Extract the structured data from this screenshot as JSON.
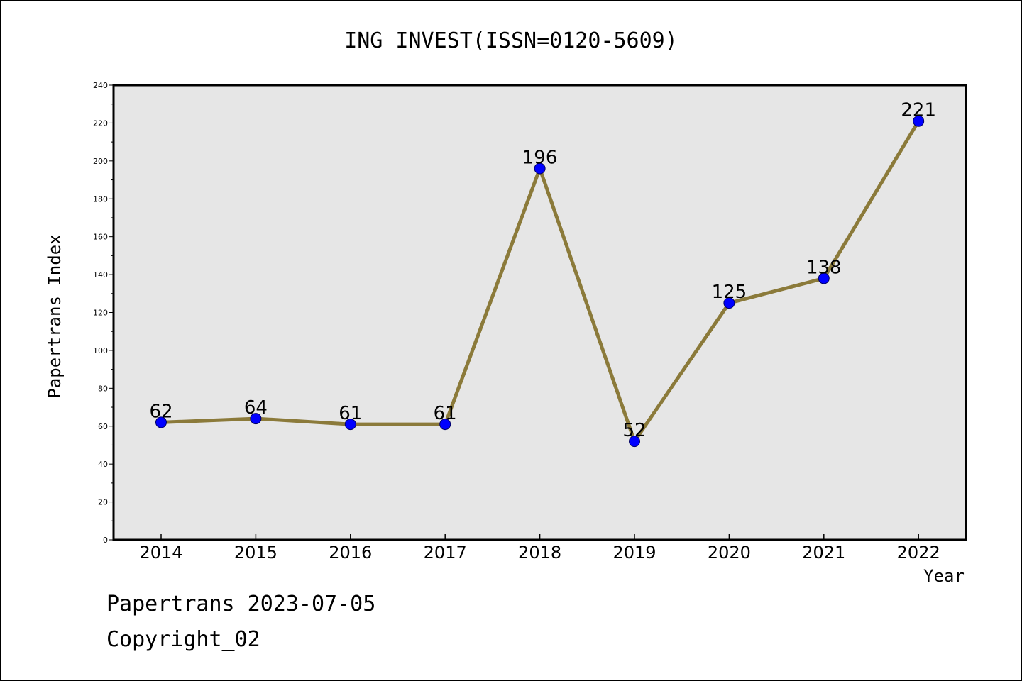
{
  "chart_data": {
    "type": "line",
    "title": "ING INVEST(ISSN=0120-5609)",
    "xlabel": "Year",
    "ylabel": "Papertrans Index",
    "categories": [
      "2014",
      "2015",
      "2016",
      "2017",
      "2018",
      "2019",
      "2020",
      "2021",
      "2022"
    ],
    "values": [
      62,
      64,
      61,
      61,
      196,
      52,
      125,
      138,
      221
    ],
    "ylim": [
      0,
      240
    ],
    "yticks": [
      0,
      20,
      40,
      60,
      80,
      100,
      120,
      140,
      160,
      180,
      200,
      220,
      240
    ],
    "grid": false,
    "plot_background": "#e6e6e6",
    "line_color": "#8b7a3a",
    "marker_color": "#0000ff"
  },
  "footer": {
    "line1": "Papertrans 2023-07-05",
    "line2": "Copyright_02"
  }
}
